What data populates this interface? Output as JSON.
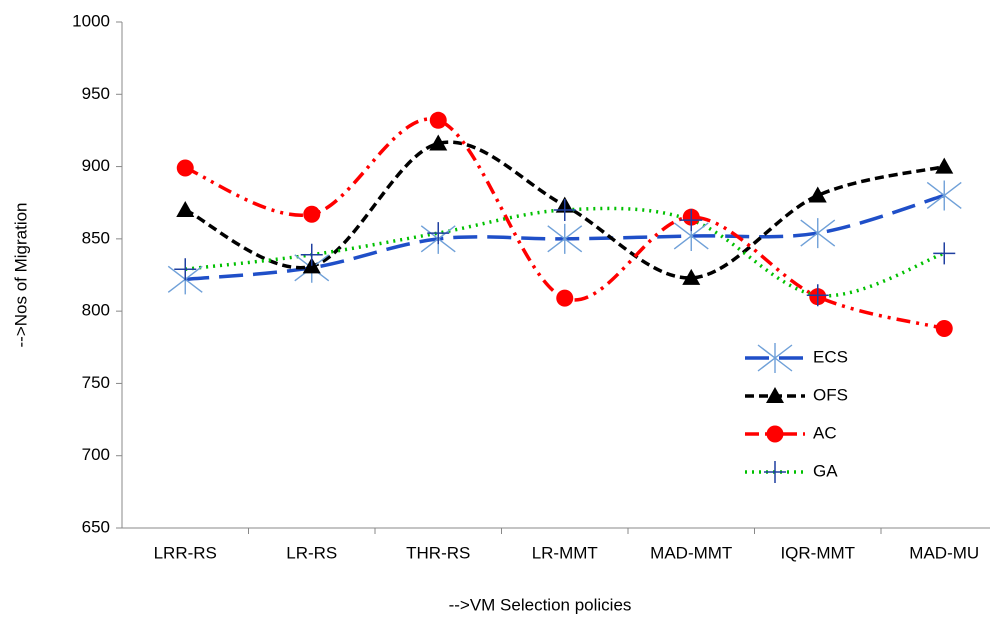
{
  "chart_data": {
    "type": "line",
    "y_label": "-->Nos of Migration",
    "x_label": "-->VM Selection policies",
    "categories": [
      "LRR-RS",
      "LR-RS",
      "THR-RS",
      "LR-MMT",
      "MAD-MMT",
      "IQR-MMT",
      "MAD-MU"
    ],
    "series": [
      {
        "name": "ECS",
        "color": "#1f4fc8",
        "marker": "star",
        "dash": "24 10",
        "values": [
          822,
          830,
          850,
          850,
          852,
          854,
          880
        ]
      },
      {
        "name": "OFS",
        "color": "#000000",
        "marker": "triangle",
        "dash": "9 5",
        "values": [
          870,
          831,
          916,
          873,
          823,
          880,
          900
        ]
      },
      {
        "name": "AC",
        "color": "#ff0000",
        "marker": "circle",
        "dash": "14 6 3 6 3 6",
        "values": [
          899,
          867,
          932,
          809,
          865,
          810,
          788
        ]
      },
      {
        "name": "GA",
        "color": "#00c000",
        "marker": "plus",
        "dash": "2 5",
        "values": [
          829,
          839,
          854,
          870,
          863,
          811,
          840
        ]
      }
    ],
    "ylim": [
      650,
      1000
    ],
    "yticks": [
      650,
      700,
      750,
      800,
      850,
      900,
      950,
      1000
    ],
    "grid": false,
    "smooth": true,
    "legend": "center-right"
  }
}
